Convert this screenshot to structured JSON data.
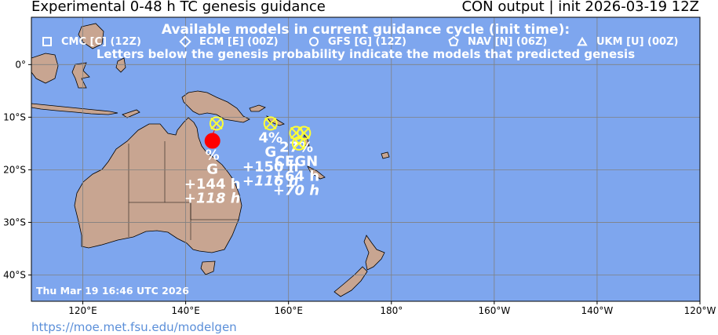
{
  "header": {
    "title_left": "Experimental 0-48 h TC genesis guidance",
    "title_right": "CON output | init 2026-03-19 12Z"
  },
  "legend": {
    "heading": "Available models in current guidance cycle (init time):",
    "models": [
      {
        "symbol": "square",
        "label": "CMC [C] (12Z)"
      },
      {
        "symbol": "diamond",
        "label": "ECM [E] (00Z)"
      },
      {
        "symbol": "circle",
        "label": "GFS [G] (12Z)"
      },
      {
        "symbol": "pentagon",
        "label": "NAV [N] (06Z)"
      },
      {
        "symbol": "triangle",
        "label": "UKM [U] (00Z)"
      }
    ],
    "note": "Letters below the genesis probability indicate the models that predicted genesis"
  },
  "map": {
    "lon_range": [
      110,
      240
    ],
    "lat_range": [
      -45,
      9
    ],
    "ocean_color": "#7ea6ee",
    "land_color": "#c8a591",
    "grid_color": "#808080",
    "lon_ticks": [
      {
        "lon": 120,
        "label": "120°E"
      },
      {
        "lon": 140,
        "label": "140°E"
      },
      {
        "lon": 160,
        "label": "160°E"
      },
      {
        "lon": 180,
        "label": "180°"
      },
      {
        "lon": 200,
        "label": "160°W"
      },
      {
        "lon": 220,
        "label": "140°W"
      },
      {
        "lon": 240,
        "label": "120°W"
      }
    ],
    "lat_ticks": [
      {
        "lat": 0,
        "label": "0°"
      },
      {
        "lat": -10,
        "label": "10°S"
      },
      {
        "lat": -20,
        "label": "20°S"
      },
      {
        "lat": -30,
        "label": "30°S"
      },
      {
        "lat": -40,
        "label": "40°S"
      }
    ],
    "timestamp": "Thu Mar 19 16:46 UTC 2026"
  },
  "storms": [
    {
      "lon": 145.2,
      "lat": -14.5,
      "color": "#ff0000",
      "fill": true,
      "prob": "%",
      "models": "G",
      "lead1": "+144 h",
      "lead2": "+118 h"
    },
    {
      "lon": 146.0,
      "lat": -11.2,
      "color": "#ffff33",
      "fill": false,
      "prob": "",
      "models": "",
      "lead1": "",
      "lead2": ""
    },
    {
      "lon": 156.5,
      "lat": -11.2,
      "color": "#ffff33",
      "fill": false,
      "prob": "4%",
      "models": "G",
      "lead1": "+150 h",
      "lead2": "+116 h"
    },
    {
      "lon": 161.5,
      "lat": -13.0,
      "color": "#ffff33",
      "fill": false,
      "prob": "27%",
      "models": "CEGN",
      "lead1": "+64 h",
      "lead2": "+70 h"
    },
    {
      "lon": 163.0,
      "lat": -13.0,
      "color": "#ffff33",
      "fill": false,
      "prob": "",
      "models": "",
      "lead1": "",
      "lead2": ""
    },
    {
      "lon": 162.0,
      "lat": -15.0,
      "color": "#ffff33",
      "fill": false,
      "prob": "",
      "models": "",
      "lead1": "",
      "lead2": ""
    }
  ],
  "footer": {
    "url": "https://moe.met.fsu.edu/modelgen"
  }
}
